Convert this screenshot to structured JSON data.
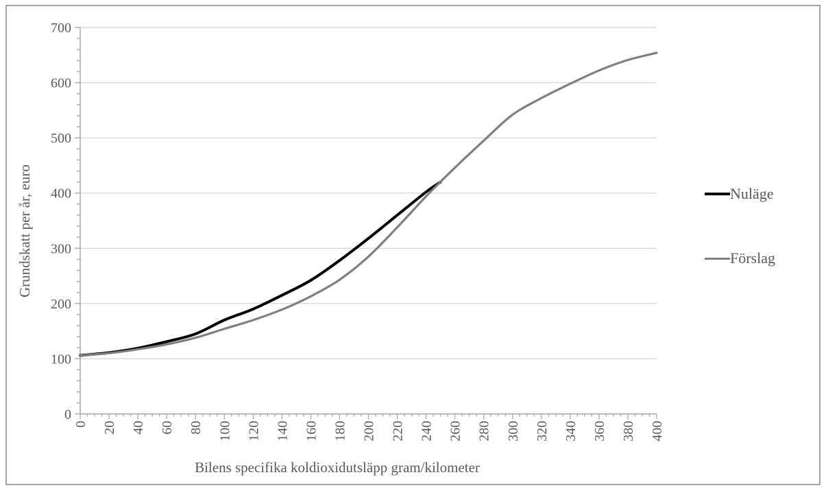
{
  "figure": {
    "background": "#ffffff",
    "border_color": "#a3a3a3"
  },
  "chart_data": {
    "type": "line",
    "title": "",
    "xlabel": "Bilens specifika koldioxidutsläpp gram/kilometer",
    "ylabel": "Grundskatt per år, euro",
    "xlim": [
      0,
      400
    ],
    "ylim": [
      0,
      700
    ],
    "x_major_tick": 20,
    "x_minor_tick": 5,
    "y_major_tick": 100,
    "y_minor_tick": 20,
    "grid": "horizontal-major-only",
    "gridline_color": "#d9d9d9",
    "axis_color": "#a6a6a6",
    "text_color": "#595959",
    "legend_position": "right",
    "x_tick_labels": [
      "0",
      "20",
      "40",
      "60",
      "80",
      "100",
      "120",
      "140",
      "160",
      "180",
      "200",
      "220",
      "240",
      "260",
      "280",
      "300",
      "320",
      "340",
      "360",
      "380",
      "400"
    ],
    "y_tick_labels": [
      "0",
      "100",
      "200",
      "300",
      "400",
      "500",
      "600",
      "700"
    ],
    "series": [
      {
        "name": "Nuläge",
        "color": "#000000",
        "stroke_width": 4,
        "x": [
          0,
          20,
          40,
          60,
          80,
          100,
          120,
          140,
          160,
          180,
          200,
          220,
          240,
          250
        ],
        "y": [
          106,
          111,
          119,
          131,
          145,
          170,
          190,
          215,
          242,
          278,
          318,
          360,
          402,
          420
        ]
      },
      {
        "name": "Förslag",
        "color": "#7f7f7f",
        "stroke_width": 3.2,
        "x": [
          0,
          20,
          40,
          60,
          80,
          100,
          120,
          140,
          160,
          180,
          200,
          220,
          240,
          260,
          280,
          300,
          320,
          340,
          360,
          380,
          400
        ],
        "y": [
          106,
          110,
          117,
          126,
          138,
          154,
          170,
          189,
          213,
          243,
          285,
          338,
          394,
          446,
          495,
          542,
          572,
          598,
          622,
          641,
          654
        ]
      }
    ]
  }
}
